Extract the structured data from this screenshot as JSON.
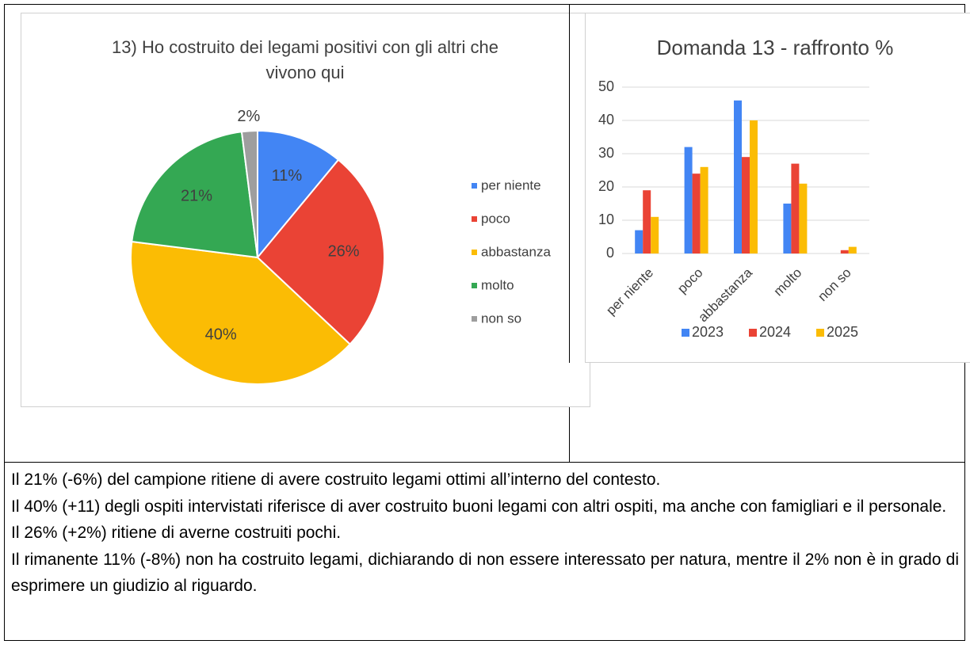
{
  "chart_data": [
    {
      "type": "pie",
      "title": "13) Ho costruito dei legami positivi con gli altri che vivono qui",
      "categories": [
        "per niente",
        "poco",
        "abbastanza",
        "molto",
        "non so"
      ],
      "values": [
        11,
        26,
        40,
        21,
        2
      ],
      "value_labels": [
        "11%",
        "26%",
        "40%",
        "21%",
        "2%"
      ],
      "colors": [
        "#4285f4",
        "#ea4335",
        "#fbbc04",
        "#34a853",
        "#9e9e9e"
      ],
      "legend": "right"
    },
    {
      "type": "bar",
      "title": "Domanda 13 - raffronto %",
      "categories": [
        "per niente",
        "poco",
        "abbastanza",
        "molto",
        "non so"
      ],
      "series": [
        {
          "name": "2023",
          "color": "#4285f4",
          "values": [
            7,
            32,
            46,
            15,
            0
          ]
        },
        {
          "name": "2024",
          "color": "#ea4335",
          "values": [
            19,
            24,
            29,
            27,
            1
          ]
        },
        {
          "name": "2025",
          "color": "#fbbc04",
          "values": [
            11,
            26,
            40,
            21,
            2
          ]
        }
      ],
      "ylim": [
        0,
        50
      ],
      "yticks": [
        0,
        10,
        20,
        30,
        40,
        50
      ],
      "grid": true,
      "legend": "bottom"
    }
  ],
  "text": {
    "paragraphs": [
      "Il 21% (-6%) del campione ritiene di avere costruito legami ottimi all’interno del contesto.",
      "Il 40% (+11) degli ospiti intervistati riferisce di aver costruito buoni legami con altri ospiti, ma anche con famigliari e il personale.",
      "Il 26% (+2%) ritiene di averne costruiti pochi.",
      "Il rimanente 11% (-8%) non ha costruito legami, dichiarando di non essere interessato per natura, mentre il 2% non è in grado di esprimere un giudizio al riguardo."
    ]
  }
}
